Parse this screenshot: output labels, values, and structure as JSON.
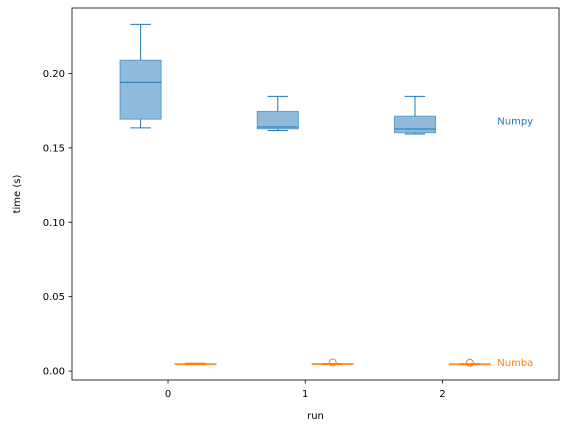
{
  "chart_data": {
    "type": "box",
    "xlabel": "run",
    "ylabel": "time (s)",
    "xlim": [
      -0.7,
      2.85
    ],
    "ylim": [
      -0.006,
      0.244
    ],
    "x_ticks": [
      0,
      1,
      2
    ],
    "x_tick_labels": [
      "0",
      "1",
      "2"
    ],
    "y_ticks": [
      0.0,
      0.05,
      0.1,
      0.15,
      0.2
    ],
    "y_tick_labels": [
      "0.00",
      "0.05",
      "0.10",
      "0.15",
      "0.20"
    ],
    "grid": false,
    "series": [
      {
        "name": "Numpy",
        "color": "#1f77b4",
        "fill": "#8fbadb",
        "label_position": [
          2.4,
          0.1683
        ],
        "boxes": [
          {
            "x": -0.2,
            "whislo": 0.1634,
            "q1": 0.1693,
            "med": 0.194,
            "q3": 0.2089,
            "whishi": 0.233,
            "fliers": []
          },
          {
            "x": 0.8,
            "whislo": 0.1617,
            "q1": 0.1628,
            "med": 0.164,
            "q3": 0.1745,
            "whishi": 0.1846,
            "fliers": []
          },
          {
            "x": 1.8,
            "whislo": 0.1593,
            "q1": 0.1602,
            "med": 0.1627,
            "q3": 0.1713,
            "whishi": 0.1846,
            "fliers": []
          }
        ]
      },
      {
        "name": "Numba",
        "color": "#ff7f0e",
        "fill": "#ffbf86",
        "label_position": [
          2.4,
          0.006
        ],
        "boxes": [
          {
            "x": 0.2,
            "whislo": 0.0043,
            "q1": 0.0045,
            "med": 0.0047,
            "q3": 0.005,
            "whishi": 0.0053,
            "fliers": []
          },
          {
            "x": 1.2,
            "whislo": 0.0044,
            "q1": 0.0046,
            "med": 0.0048,
            "q3": 0.005,
            "whishi": 0.0051,
            "fliers": [
              0.0058
            ]
          },
          {
            "x": 2.2,
            "whislo": 0.0043,
            "q1": 0.0045,
            "med": 0.0047,
            "q3": 0.0049,
            "whishi": 0.005,
            "fliers": [
              0.0056
            ]
          }
        ]
      }
    ]
  }
}
